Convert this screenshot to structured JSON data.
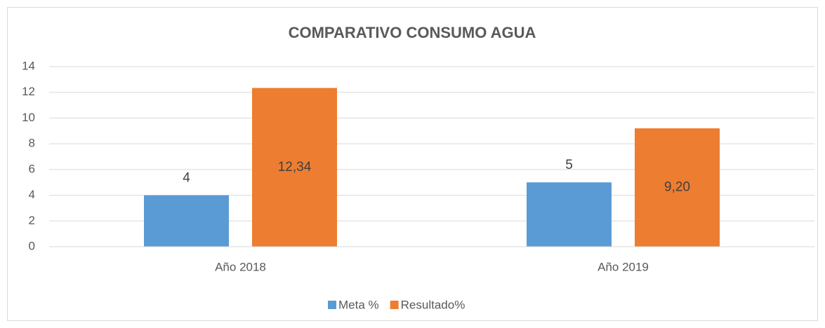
{
  "chart_data": {
    "type": "bar",
    "title": "COMPARATIVO CONSUMO AGUA",
    "categories": [
      "Año 2018",
      "Año 2019"
    ],
    "series": [
      {
        "name": "Meta %",
        "color": "#5b9bd5",
        "values": [
          4,
          5
        ],
        "value_labels": [
          "4",
          "5"
        ]
      },
      {
        "name": "Resultado%",
        "color": "#ed7d31",
        "values": [
          12.34,
          9.2
        ],
        "value_labels": [
          "12,34",
          "9,20"
        ]
      }
    ],
    "ylim": [
      0,
      14
    ],
    "yticks": [
      0,
      2,
      4,
      6,
      8,
      10,
      12,
      14
    ],
    "grid": true,
    "legend": "bottom"
  }
}
